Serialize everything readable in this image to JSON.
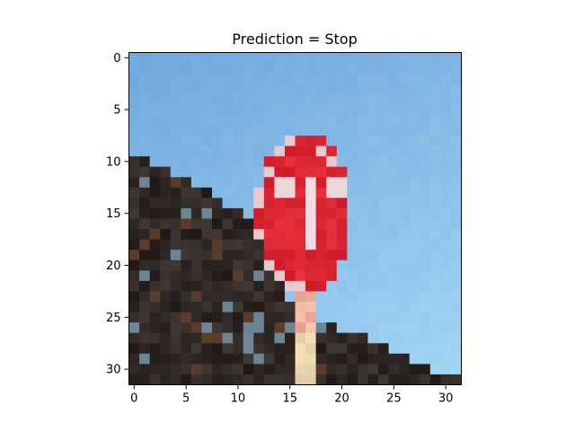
{
  "chart_data": {
    "type": "heatmap",
    "title": "Prediction = Stop",
    "xlabel": "",
    "ylabel": "",
    "xlim": [
      -0.5,
      31.5
    ],
    "ylim": [
      31.5,
      -0.5
    ],
    "x_ticks": [
      0,
      5,
      10,
      15,
      20,
      25,
      30
    ],
    "y_ticks": [
      0,
      5,
      10,
      15,
      20,
      25,
      30
    ],
    "grid": false,
    "image_size": [
      32,
      32
    ],
    "content": "32x32 pixelated photo: blue sky, red sign on a post, dark foliage"
  }
}
